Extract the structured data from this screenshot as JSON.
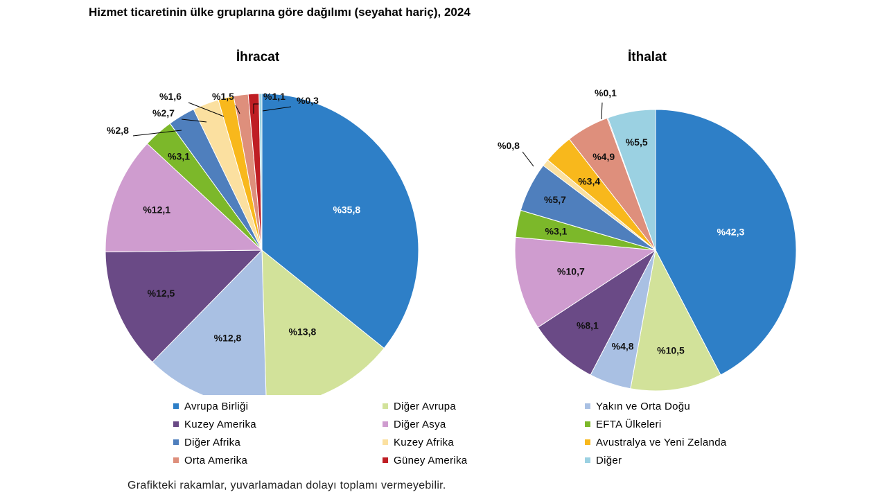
{
  "title": "Hizmet ticaretinin ülke gruplarına göre dağılımı (seyahat hariç), 2024",
  "note": "Grafikteki rakamlar, yuvarlamadan dolayı toplamı vermeyebilir.",
  "legend": [
    {
      "label": "Avrupa Birliği",
      "color": "#2e7fc7"
    },
    {
      "label": "Diğer Avrupa",
      "color": "#d2e29a"
    },
    {
      "label": "Yakın ve Orta Doğu",
      "color": "#a9c0e3"
    },
    {
      "label": "Kuzey Amerika",
      "color": "#6a4a86"
    },
    {
      "label": "Diğer Asya",
      "color": "#cf9ccf"
    },
    {
      "label": "EFTA Ülkeleri",
      "color": "#7cb82a"
    },
    {
      "label": "Diğer Afrika",
      "color": "#4f7fbd"
    },
    {
      "label": "Kuzey Afrika",
      "color": "#fbe0a0"
    },
    {
      "label": "Avustralya ve Yeni Zelanda",
      "color": "#f8b81c"
    },
    {
      "label": "Orta Amerika",
      "color": "#de8f7c"
    },
    {
      "label": "Güney Amerika",
      "color": "#bf1e24"
    },
    {
      "label": "Diğer",
      "color": "#9bd1e2"
    }
  ],
  "chart_data": [
    {
      "type": "pie",
      "title": "İhracat",
      "slices": [
        {
          "category": "Avrupa Birliği",
          "value": 35.8,
          "label": "%35,8"
        },
        {
          "category": "Diğer Avrupa",
          "value": 13.8,
          "label": "%13,8"
        },
        {
          "category": "Yakın ve Orta Doğu",
          "value": 12.8,
          "label": "%12,8"
        },
        {
          "category": "Kuzey Amerika",
          "value": 12.5,
          "label": "%12,5"
        },
        {
          "category": "Diğer Asya",
          "value": 12.1,
          "label": "%12,1"
        },
        {
          "category": "EFTA Ülkeleri",
          "value": 3.1,
          "label": "%3,1"
        },
        {
          "category": "Diğer Afrika",
          "value": 2.8,
          "label": "%2,8"
        },
        {
          "category": "Kuzey Afrika",
          "value": 2.7,
          "label": "%2,7"
        },
        {
          "category": "Avustralya ve Yeni Zelanda",
          "value": 1.6,
          "label": "%1,6"
        },
        {
          "category": "Orta Amerika",
          "value": 1.5,
          "label": "%1,5"
        },
        {
          "category": "Güney Amerika",
          "value": 1.1,
          "label": "%1,1"
        },
        {
          "category": "Diğer",
          "value": 0.3,
          "label": "%0,3"
        }
      ]
    },
    {
      "type": "pie",
      "title": "İthalat",
      "slices": [
        {
          "category": "Avrupa Birliği",
          "value": 42.3,
          "label": "%42,3"
        },
        {
          "category": "Diğer Avrupa",
          "value": 10.5,
          "label": "%10,5"
        },
        {
          "category": "Yakın ve Orta Doğu",
          "value": 4.8,
          "label": "%4,8"
        },
        {
          "category": "Kuzey Amerika",
          "value": 8.1,
          "label": "%8,1"
        },
        {
          "category": "Diğer Asya",
          "value": 10.7,
          "label": "%10,7"
        },
        {
          "category": "EFTA Ülkeleri",
          "value": 3.1,
          "label": "%3,1"
        },
        {
          "category": "Diğer Afrika",
          "value": 5.7,
          "label": "%5,7"
        },
        {
          "category": "Kuzey Afrika",
          "value": 0.8,
          "label": "%0,8"
        },
        {
          "category": "Avustralya ve Yeni Zelanda",
          "value": 3.4,
          "label": "%3,4"
        },
        {
          "category": "Orta Amerika",
          "value": 4.9,
          "label": "%4,9"
        },
        {
          "category": "Güney Amerika",
          "value": 0.1,
          "label": "%0,1"
        },
        {
          "category": "Diğer",
          "value": 5.5,
          "label": "%5,5"
        }
      ]
    }
  ]
}
